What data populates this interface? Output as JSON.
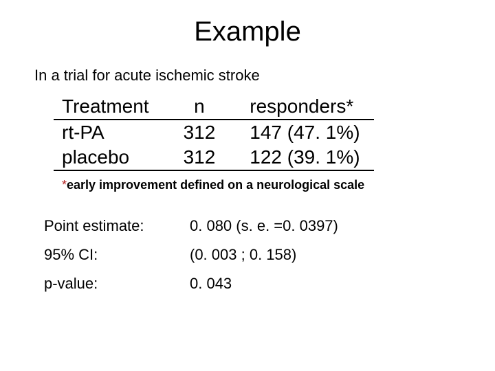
{
  "title": "Example",
  "intro": "In a trial for acute ischemic stroke",
  "table": {
    "type": "table",
    "columns": [
      "Treatment",
      "n",
      "responders*"
    ],
    "rows": [
      [
        "rt-PA",
        "312",
        "147 (47. 1%)"
      ],
      [
        "placebo",
        "312",
        "122 (39. 1%)"
      ]
    ],
    "border_color": "#000000",
    "header_fontsize": 28,
    "cell_fontsize": 28
  },
  "footnote": {
    "marker": "*",
    "marker_color": "#b22222",
    "text": "early improvement defined on a neurological scale"
  },
  "stats": {
    "rows": [
      {
        "label": "Point estimate:",
        "value": "0. 080  (s. e. =0. 0397)"
      },
      {
        "label": "95% CI:",
        "value": "(0. 003 ; 0. 158)"
      },
      {
        "label": "p-value:",
        "value": "0. 043"
      }
    ]
  },
  "colors": {
    "background": "#ffffff",
    "text": "#000000"
  }
}
